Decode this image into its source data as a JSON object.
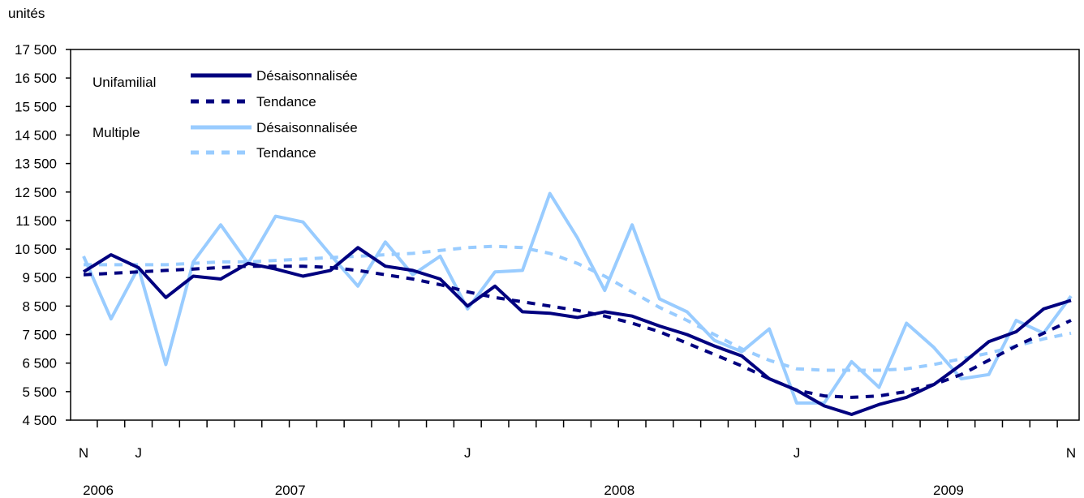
{
  "chart_data": {
    "type": "line",
    "ylabel": "unités",
    "ylim": [
      4500,
      17500
    ],
    "y_ticks": [
      4500,
      5500,
      6500,
      7500,
      8500,
      9500,
      10500,
      11500,
      12500,
      13500,
      14500,
      15500,
      16500,
      17500
    ],
    "y_tick_labels": [
      "4 500",
      "5 500",
      "6 500",
      "7 500",
      "8 500",
      "9 500",
      "10 500",
      "11 500",
      "12 500",
      "13 500",
      "14 500",
      "15 500",
      "16 500",
      "17 500"
    ],
    "x": [
      "2006-11",
      "2006-12",
      "2007-01",
      "2007-02",
      "2007-03",
      "2007-04",
      "2007-05",
      "2007-06",
      "2007-07",
      "2007-08",
      "2007-09",
      "2007-10",
      "2007-11",
      "2007-12",
      "2008-01",
      "2008-02",
      "2008-03",
      "2008-04",
      "2008-05",
      "2008-06",
      "2008-07",
      "2008-08",
      "2008-09",
      "2008-10",
      "2008-11",
      "2008-12",
      "2009-01",
      "2009-02",
      "2009-03",
      "2009-04",
      "2009-05",
      "2009-06",
      "2009-07",
      "2009-08",
      "2009-09",
      "2009-10",
      "2009-11"
    ],
    "month_labels": [
      {
        "index": 0,
        "label": "N"
      },
      {
        "index": 2,
        "label": "J"
      },
      {
        "index": 14,
        "label": "J"
      },
      {
        "index": 26,
        "label": "J"
      },
      {
        "index": 36,
        "label": "N"
      }
    ],
    "year_labels": [
      {
        "index": 0,
        "label": "2006"
      },
      {
        "index": 7,
        "label": "2007"
      },
      {
        "index": 19,
        "label": "2008"
      },
      {
        "index": 31,
        "label": "2009"
      }
    ],
    "legend": {
      "groups": [
        {
          "name": "Unifamilial",
          "entries": [
            "Désaisonnalisée",
            "Tendance"
          ]
        },
        {
          "name": "Multiple",
          "entries": [
            "Désaisonnalisée",
            "Tendance"
          ]
        }
      ],
      "placement": "top-left"
    },
    "series": [
      {
        "group": "Unifamilial",
        "name": "Désaisonnalisée",
        "color": "#00007f",
        "dash": false,
        "values": [
          9700,
          10300,
          9850,
          8800,
          9550,
          9450,
          10000,
          9800,
          9550,
          9750,
          10550,
          9900,
          9750,
          9450,
          8500,
          9200,
          8300,
          8250,
          8100,
          8300,
          8150,
          7800,
          7500,
          7100,
          6750,
          5950,
          5550,
          5000,
          4700,
          5050,
          5300,
          5750,
          6450,
          7250,
          7600,
          8400,
          8700
        ]
      },
      {
        "group": "Unifamilial",
        "name": "Tendance",
        "color": "#00007f",
        "dash": true,
        "values": [
          9600,
          9650,
          9700,
          9750,
          9800,
          9850,
          9900,
          9900,
          9900,
          9850,
          9750,
          9600,
          9450,
          9250,
          9000,
          8800,
          8650,
          8500,
          8350,
          8150,
          7900,
          7600,
          7200,
          6800,
          6400,
          5950,
          5550,
          5350,
          5300,
          5350,
          5500,
          5750,
          6100,
          6600,
          7100,
          7550,
          8000
        ]
      },
      {
        "group": "Multiple",
        "name": "Désaisonnalisée",
        "color": "#99ccff",
        "dash": false,
        "values": [
          10250,
          8050,
          9850,
          6450,
          10050,
          11350,
          10000,
          11650,
          11450,
          10300,
          9200,
          10750,
          9600,
          10250,
          8400,
          9700,
          9750,
          12450,
          10900,
          9050,
          11350,
          8750,
          8300,
          7300,
          6900,
          7700,
          5100,
          5100,
          6550,
          5650,
          7900,
          7050,
          5950,
          6100,
          8000,
          7550,
          8850
        ]
      },
      {
        "group": "Multiple",
        "name": "Tendance",
        "color": "#99ccff",
        "dash": true,
        "values": [
          9950,
          9950,
          9950,
          9950,
          10000,
          10050,
          10050,
          10100,
          10150,
          10200,
          10250,
          10300,
          10350,
          10450,
          10550,
          10600,
          10550,
          10350,
          10000,
          9550,
          9000,
          8450,
          8000,
          7500,
          7000,
          6600,
          6300,
          6250,
          6250,
          6250,
          6300,
          6450,
          6650,
          6850,
          7100,
          7350,
          7550
        ]
      }
    ]
  }
}
